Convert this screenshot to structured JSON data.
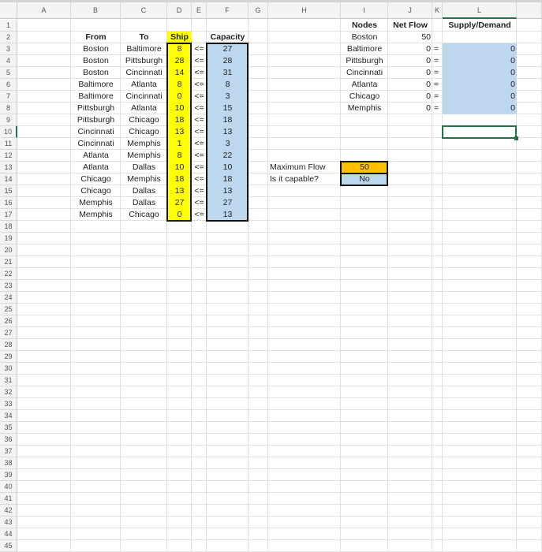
{
  "columns": [
    "A",
    "B",
    "C",
    "D",
    "E",
    "F",
    "G",
    "H",
    "I",
    "J",
    "K",
    "L"
  ],
  "row_count": 45,
  "colors": {
    "ship_fill": "#ffff00",
    "capacity_fill": "#bdd7ee",
    "max_flow_fill": "#ffc000",
    "selection": "#217346"
  },
  "edges_table": {
    "headers": {
      "from": "From",
      "to": "To",
      "ship": "Ship",
      "capacity": "Capacity"
    },
    "rows": [
      {
        "from": "Boston",
        "to": "Baltimore",
        "ship": "8",
        "op": "<=",
        "capacity": "27"
      },
      {
        "from": "Boston",
        "to": "Pittsburgh",
        "ship": "28",
        "op": "<=",
        "capacity": "28"
      },
      {
        "from": "Boston",
        "to": "Cincinnati",
        "ship": "14",
        "op": "<=",
        "capacity": "31"
      },
      {
        "from": "Baltimore",
        "to": "Atlanta",
        "ship": "8",
        "op": "<=",
        "capacity": "8"
      },
      {
        "from": "Baltimore",
        "to": "Cincinnati",
        "ship": "0",
        "op": "<=",
        "capacity": "3"
      },
      {
        "from": "Pittsburgh",
        "to": "Atlanta",
        "ship": "10",
        "op": "<=",
        "capacity": "15"
      },
      {
        "from": "Pittsburgh",
        "to": "Chicago",
        "ship": "18",
        "op": "<=",
        "capacity": "18"
      },
      {
        "from": "Cincinnati",
        "to": "Chicago",
        "ship": "13",
        "op": "<=",
        "capacity": "13"
      },
      {
        "from": "Cincinnati",
        "to": "Memphis",
        "ship": "1",
        "op": "<=",
        "capacity": "3"
      },
      {
        "from": "Atlanta",
        "to": "Memphis",
        "ship": "8",
        "op": "<=",
        "capacity": "22"
      },
      {
        "from": "Atlanta",
        "to": "Dallas",
        "ship": "10",
        "op": "<=",
        "capacity": "10"
      },
      {
        "from": "Chicago",
        "to": "Memphis",
        "ship": "18",
        "op": "<=",
        "capacity": "18"
      },
      {
        "from": "Chicago",
        "to": "Dallas",
        "ship": "13",
        "op": "<=",
        "capacity": "13"
      },
      {
        "from": "Memphis",
        "to": "Dallas",
        "ship": "27",
        "op": "<=",
        "capacity": "27"
      },
      {
        "from": "Memphis",
        "to": "Chicago",
        "ship": "0",
        "op": "<=",
        "capacity": "13"
      }
    ]
  },
  "nodes_table": {
    "headers": {
      "nodes": "Nodes",
      "net_flow": "Net Flow",
      "supply_demand": "Supply/Demand"
    },
    "rows": [
      {
        "node": "Boston",
        "net_flow": "50",
        "op": "",
        "supply_demand": ""
      },
      {
        "node": "Baltimore",
        "net_flow": "0",
        "op": "=",
        "supply_demand": "0"
      },
      {
        "node": "Pittsburgh",
        "net_flow": "0",
        "op": "=",
        "supply_demand": "0"
      },
      {
        "node": "Cincinnati",
        "net_flow": "0",
        "op": "=",
        "supply_demand": "0"
      },
      {
        "node": "Atlanta",
        "net_flow": "0",
        "op": "=",
        "supply_demand": "0"
      },
      {
        "node": "Chicago",
        "net_flow": "0",
        "op": "=",
        "supply_demand": "0"
      },
      {
        "node": "Memphis",
        "net_flow": "0",
        "op": "=",
        "supply_demand": "0"
      }
    ]
  },
  "summary": {
    "max_flow_label": "Maximum Flow",
    "max_flow_value": "50",
    "capable_label": "Is it capable?",
    "capable_value": "No"
  },
  "selected_cell": "L10"
}
